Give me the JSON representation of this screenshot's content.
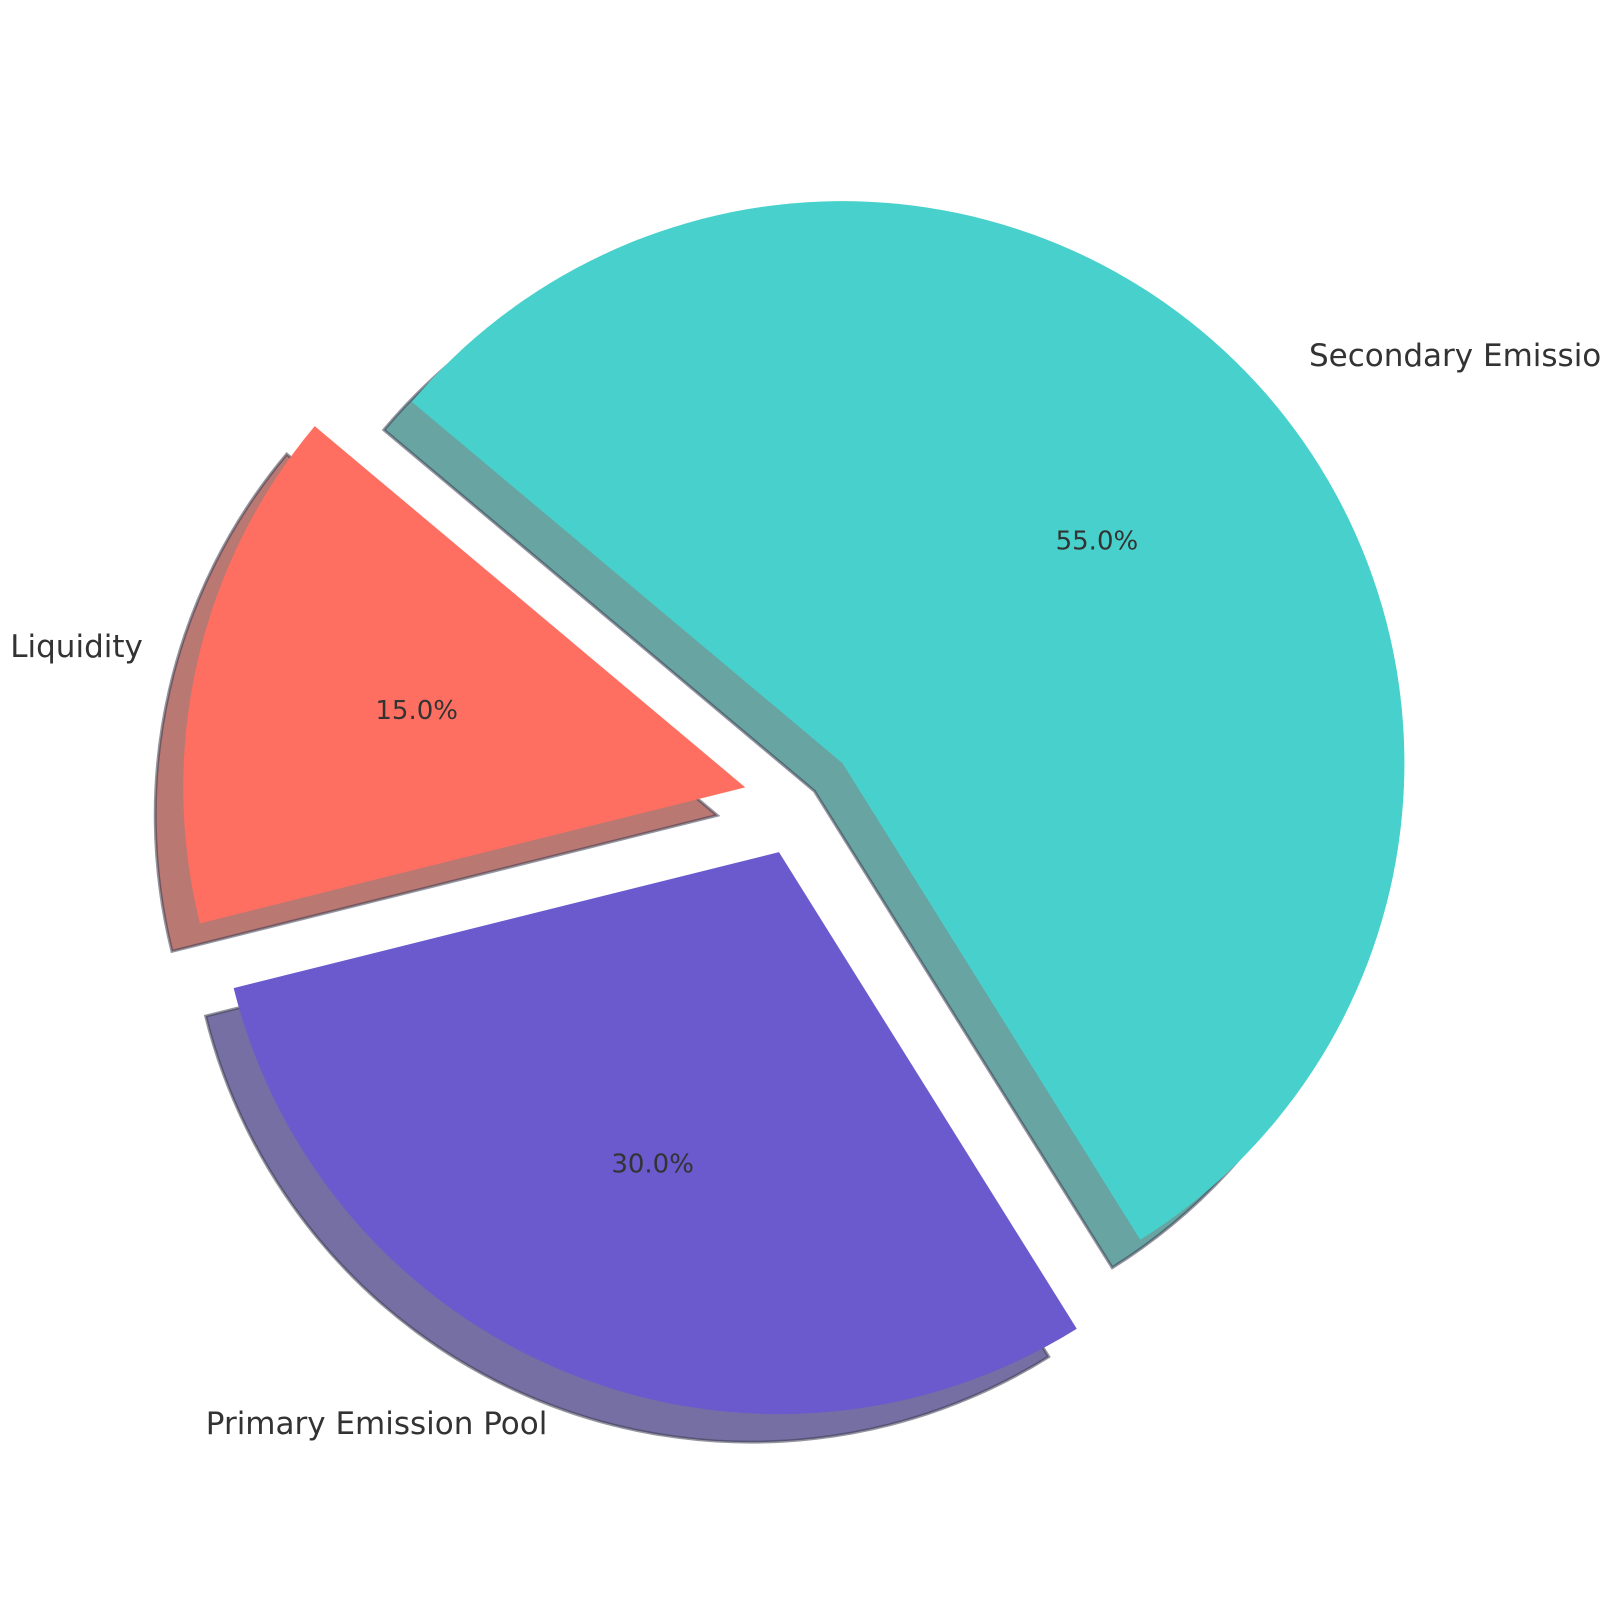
{
  "chart_data": {
    "type": "pie",
    "title": "",
    "slices": [
      {
        "label": "Liquidity",
        "value": 15.0,
        "pct_label": "15.0%",
        "color": "#FF6F61"
      },
      {
        "label": "Primary Emission Pool",
        "value": 30.0,
        "pct_label": "30.0%",
        "color": "#6A5ACD"
      },
      {
        "label": "Secondary Emission",
        "value": 55.0,
        "pct_label": "55.0%",
        "color": "#48D1CC"
      }
    ],
    "exploded": true,
    "shadow": true
  }
}
